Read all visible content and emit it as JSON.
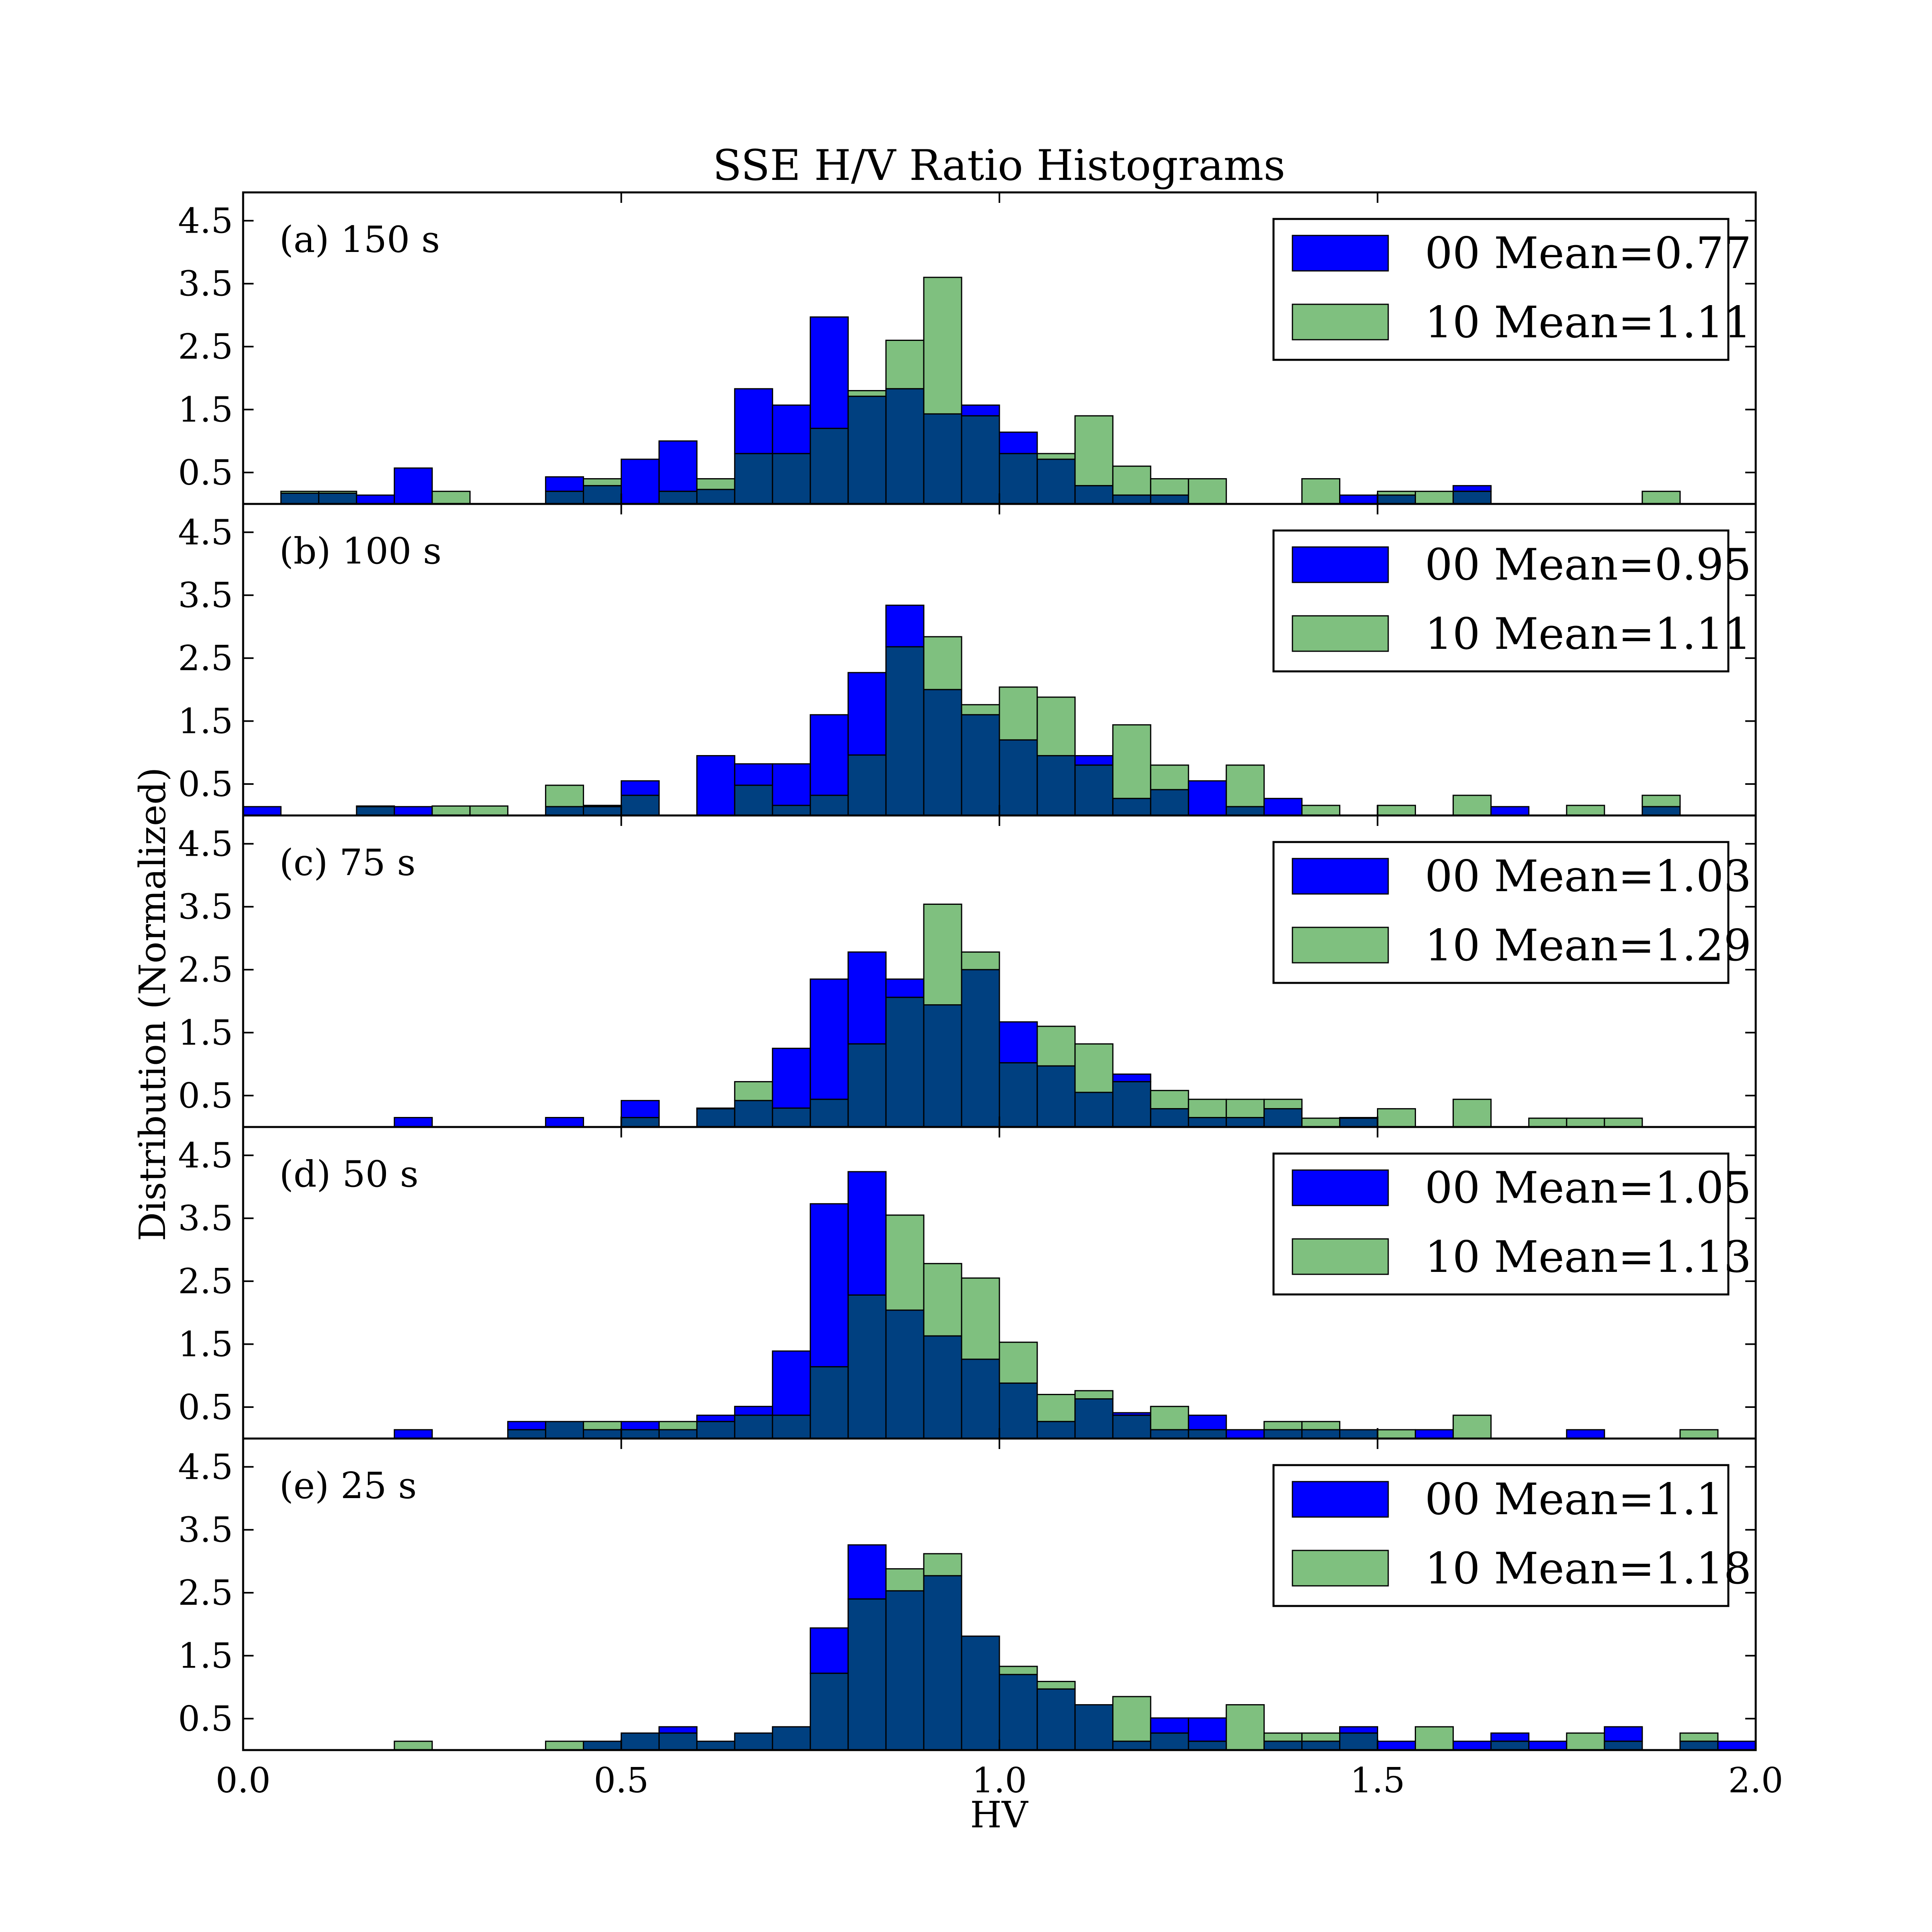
{
  "chart_data": {
    "type": "bar",
    "title": "SSE H/V Ratio Histograms",
    "xlabel": "HV",
    "ylabel": "Distribution (Normalized)",
    "xlim": [
      0.0,
      2.0
    ],
    "ylim": [
      0,
      4.95
    ],
    "xticks": [
      "0.0",
      "0.5",
      "1.0",
      "1.5",
      "2.0"
    ],
    "xtick_values": [
      0.0,
      0.5,
      1.0,
      1.5,
      2.0
    ],
    "yticks": [
      "0.5",
      "1.5",
      "2.5",
      "3.5",
      "4.5"
    ],
    "ytick_values": [
      0.5,
      1.5,
      2.5,
      3.5,
      4.5
    ],
    "bin_width": 0.05,
    "bin_starts": [
      0.0,
      0.05,
      0.1,
      0.15,
      0.2,
      0.25,
      0.3,
      0.35,
      0.4,
      0.45,
      0.5,
      0.55,
      0.6,
      0.65,
      0.7,
      0.75,
      0.8,
      0.85,
      0.9,
      0.95,
      1.0,
      1.05,
      1.1,
      1.15,
      1.2,
      1.25,
      1.3,
      1.35,
      1.4,
      1.45,
      1.5,
      1.55,
      1.6,
      1.65,
      1.7,
      1.75,
      1.8,
      1.85,
      1.9,
      1.95
    ],
    "series_colors": {
      "00": "#0000ff",
      "10": "#7fc07f",
      "overlap": "#004080"
    },
    "panels": [
      {
        "label": "(a) 150 s",
        "series": [
          {
            "name": "00 Mean=0.77",
            "values": [
              0,
              0.17,
              0.17,
              0.14,
              0.57,
              0,
              0,
              0,
              0.43,
              0.29,
              0.71,
              1.0,
              0.23,
              1.83,
              1.57,
              2.97,
              1.71,
              1.83,
              1.43,
              1.57,
              1.14,
              0.71,
              0.29,
              0.14,
              0.14,
              0,
              0,
              0,
              0,
              0.14,
              0.14,
              0,
              0.29,
              0,
              0,
              0,
              0,
              0,
              0,
              0
            ]
          },
          {
            "name": "10 Mean=1.11",
            "values": [
              0,
              0.2,
              0.2,
              0,
              0,
              0.2,
              0,
              0,
              0.2,
              0.4,
              0,
              0.2,
              0.4,
              0.8,
              0.8,
              1.2,
              1.8,
              2.6,
              3.6,
              1.4,
              0.8,
              0.8,
              1.4,
              0.6,
              0.4,
              0.4,
              0,
              0,
              0.4,
              0,
              0.2,
              0.2,
              0.2,
              0,
              0,
              0,
              0,
              0.2,
              0,
              0
            ]
          }
        ]
      },
      {
        "label": "(b) 100 s",
        "series": [
          {
            "name": "00 Mean=0.95",
            "values": [
              0.14,
              0,
              0,
              0.14,
              0.14,
              0,
              0,
              0,
              0.14,
              0.14,
              0.55,
              0,
              0.95,
              0.82,
              0.82,
              1.6,
              2.27,
              3.34,
              2.0,
              1.6,
              1.2,
              0.95,
              0.95,
              0.27,
              0.41,
              0.55,
              0.14,
              0.27,
              0,
              0,
              0,
              0,
              0,
              0.14,
              0,
              0,
              0,
              0.14,
              0,
              0
            ]
          },
          {
            "name": "10 Mean=1.11",
            "values": [
              0,
              0,
              0,
              0.15,
              0,
              0.15,
              0.15,
              0,
              0.48,
              0.16,
              0.32,
              0,
              0,
              0.48,
              0.16,
              0.32,
              0.96,
              2.68,
              2.84,
              1.76,
              2.04,
              1.88,
              0.8,
              1.44,
              0.8,
              0,
              0.8,
              0,
              0.16,
              0,
              0.16,
              0,
              0.32,
              0,
              0,
              0.16,
              0,
              0.32,
              0,
              0
            ]
          }
        ]
      },
      {
        "label": "(c) 75 s",
        "series": [
          {
            "name": "00 Mean=1.03",
            "values": [
              0,
              0,
              0,
              0,
              0.15,
              0,
              0,
              0,
              0.15,
              0,
              0.42,
              0,
              0.29,
              0.42,
              1.25,
              2.35,
              2.78,
              2.35,
              1.94,
              2.5,
              1.67,
              0.97,
              0.55,
              0.84,
              0.29,
              0.15,
              0.15,
              0.29,
              0,
              0.15,
              0,
              0,
              0,
              0,
              0,
              0,
              0,
              0,
              0,
              0
            ]
          },
          {
            "name": "10 Mean=1.29",
            "values": [
              0,
              0,
              0,
              0,
              0,
              0,
              0,
              0,
              0,
              0,
              0.15,
              0,
              0.3,
              0.72,
              0.3,
              0.44,
              1.32,
              2.06,
              3.54,
              2.78,
              1.02,
              1.6,
              1.32,
              0.72,
              0.58,
              0.44,
              0.44,
              0.44,
              0.14,
              0.14,
              0.29,
              0,
              0.44,
              0,
              0.14,
              0.14,
              0.14,
              0,
              0,
              0
            ]
          }
        ]
      },
      {
        "label": "(d) 50 s",
        "series": [
          {
            "name": "00 Mean=1.05",
            "values": [
              0,
              0,
              0,
              0,
              0.14,
              0,
              0,
              0.27,
              0.27,
              0.14,
              0.27,
              0.14,
              0.37,
              0.51,
              1.39,
              3.73,
              4.24,
              2.04,
              1.63,
              1.26,
              0.88,
              0.27,
              0.63,
              0.41,
              0.14,
              0.37,
              0.14,
              0.14,
              0.14,
              0.14,
              0,
              0.14,
              0,
              0,
              0,
              0.14,
              0,
              0,
              0,
              0
            ]
          },
          {
            "name": "10 Mean=1.13",
            "values": [
              0,
              0,
              0,
              0,
              0,
              0,
              0,
              0.14,
              0.27,
              0.27,
              0.14,
              0.27,
              0.27,
              0.37,
              0.37,
              1.14,
              2.28,
              3.55,
              2.78,
              2.55,
              1.53,
              0.7,
              0.76,
              0.37,
              0.51,
              0.14,
              0,
              0.27,
              0.27,
              0.14,
              0.14,
              0,
              0.37,
              0,
              0,
              0,
              0,
              0,
              0.14,
              0
            ]
          }
        ]
      },
      {
        "label": "(e) 25 s",
        "series": [
          {
            "name": "00 Mean=1.1",
            "values": [
              0,
              0,
              0,
              0,
              0,
              0,
              0,
              0,
              0,
              0.14,
              0.27,
              0.37,
              0.14,
              0.27,
              0.37,
              1.94,
              3.26,
              2.53,
              2.77,
              1.81,
              1.2,
              0.97,
              0.72,
              0.14,
              0.51,
              0.51,
              0,
              0.14,
              0.14,
              0.37,
              0.14,
              0,
              0.14,
              0.27,
              0.14,
              0,
              0.37,
              0,
              0.14,
              0.14
            ]
          },
          {
            "name": "10 Mean=1.18",
            "values": [
              0,
              0,
              0,
              0,
              0.14,
              0,
              0,
              0,
              0.14,
              0.14,
              0.27,
              0.27,
              0.14,
              0.27,
              0.37,
              1.22,
              2.4,
              2.88,
              3.12,
              1.81,
              1.33,
              1.09,
              0.72,
              0.85,
              0.27,
              0.14,
              0.72,
              0.27,
              0.27,
              0.27,
              0,
              0.37,
              0,
              0.14,
              0,
              0.27,
              0.14,
              0,
              0.27,
              0
            ]
          }
        ]
      }
    ]
  }
}
